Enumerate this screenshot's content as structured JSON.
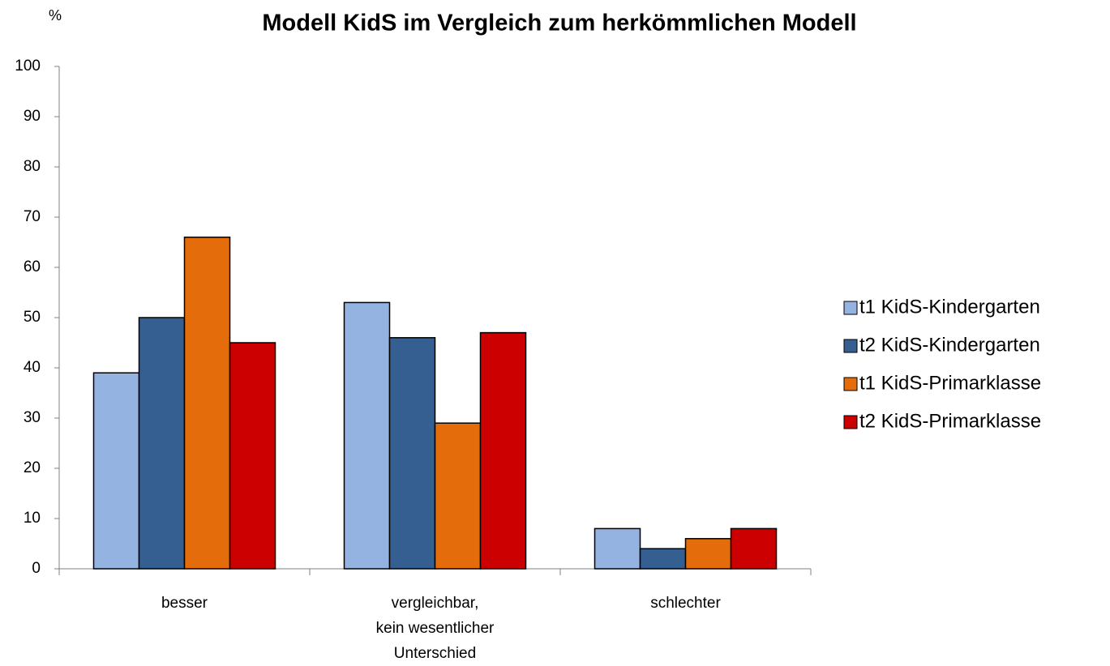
{
  "chart_data": {
    "type": "bar",
    "title": "Modell KidS im Vergleich zum herkömmlichen Modell",
    "y_axis_label": "%",
    "categories": [
      [
        "besser"
      ],
      [
        "vergleichbar,",
        "kein wesentlicher",
        "Unterschied"
      ],
      [
        "schlechter"
      ]
    ],
    "series": [
      {
        "name": "t1 KidS-Kindergarten",
        "color": "#95b3e0",
        "values": [
          39,
          53,
          8
        ]
      },
      {
        "name": "t2 KidS-Kindergarten",
        "color": "#355f91",
        "values": [
          50,
          46,
          4
        ]
      },
      {
        "name": "t1 KidS-Primarklasse",
        "color": "#e46c0a",
        "values": [
          66,
          29,
          6
        ]
      },
      {
        "name": "t2 KidS-Primarklasse",
        "color": "#cc0000",
        "values": [
          45,
          47,
          8
        ]
      }
    ],
    "ylim": [
      0,
      100
    ],
    "yticks": [
      0,
      10,
      20,
      30,
      40,
      50,
      60,
      70,
      80,
      90,
      100
    ],
    "legend": "right"
  }
}
